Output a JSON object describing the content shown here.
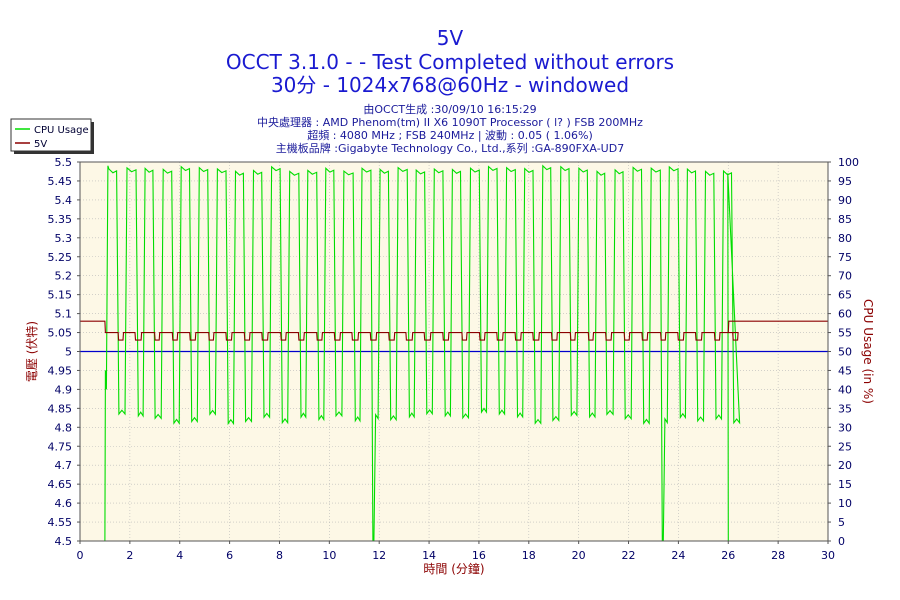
{
  "header": {
    "title": "5V",
    "subtitle1": "OCCT 3.1.0 -  - Test Completed without errors",
    "subtitle2": "30分 - 1024x768@60Hz - windowed",
    "info": [
      "由OCCT生成 :30/09/10 16:15:29",
      "中央處理器 : AMD Phenom(tm) II X6 1090T Processor (  l? ) FSB 200MHz",
      "超頻 : 4080 MHz ; FSB 240MHz | 波動 : 0.05 ( 1.06%)",
      "主機板品牌 :Gigabyte Technology Co., Ltd.,系列 :GA-890FXA-UD7"
    ]
  },
  "colors": {
    "cpu": "#00dd00",
    "volt": "#8b0000",
    "ref": "#0000cc",
    "plot_bg": "#fdf8e6",
    "grid": "#b8b8b8",
    "axis_text": "#000066",
    "label_text": "#8b0000"
  },
  "chart_data": {
    "type": "line",
    "title": "5V",
    "xlabel": "時間 (分鐘)",
    "ylabel_left": "電壓 (伏特)",
    "ylabel_right": "CPU Usage (in %)",
    "xlim": [
      0,
      30
    ],
    "ylim_left": [
      4.5,
      5.5
    ],
    "ylim_right": [
      0,
      100
    ],
    "x_ticks": [
      "0",
      "2",
      "4",
      "6",
      "8",
      "10",
      "12",
      "14",
      "16",
      "18",
      "20",
      "22",
      "24",
      "26",
      "28",
      "30"
    ],
    "y_left_ticks": [
      "4.5",
      "4.55",
      "4.6",
      "4.65",
      "4.7",
      "4.75",
      "4.8",
      "4.85",
      "4.9",
      "4.95",
      "5",
      "5.05",
      "5.1",
      "5.15",
      "5.2",
      "5.25",
      "5.3",
      "5.35",
      "5.4",
      "5.45",
      "5.5"
    ],
    "y_right_ticks": [
      "0",
      "5",
      "10",
      "15",
      "20",
      "25",
      "30",
      "35",
      "40",
      "45",
      "50",
      "55",
      "60",
      "65",
      "70",
      "75",
      "80",
      "85",
      "90",
      "95",
      "100"
    ],
    "grid": true,
    "legend_position": "top-left",
    "reference_line": 5.0,
    "test_window": {
      "start_min": 1.0,
      "end_min": 26.0
    },
    "series": [
      {
        "name": "CPU Usage",
        "axis": "right",
        "idle": 0,
        "high": 99,
        "low": 34,
        "period_min": 0.725,
        "drops_to_zero_min": [
          12.0,
          23.0,
          26.0
        ]
      },
      {
        "name": "5V",
        "axis": "left",
        "idle": 5.08,
        "load_high": 5.05,
        "load_low": 5.03,
        "min": 5.03,
        "max": 5.08
      }
    ]
  }
}
